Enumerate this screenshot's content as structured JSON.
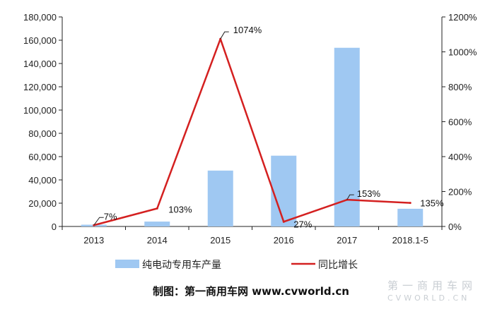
{
  "chart_data": {
    "type": "bar+line",
    "categories": [
      "2013",
      "2014",
      "2015",
      "2016",
      "2017",
      "2018.1-5"
    ],
    "series": [
      {
        "name": "纯电动专用车产量",
        "type": "bar",
        "axis": "left",
        "color": "#9fc8f2",
        "values": [
          1500,
          4200,
          48000,
          60800,
          153500,
          15200
        ]
      },
      {
        "name": "同比增长",
        "type": "line",
        "axis": "right",
        "color": "#d42020",
        "values": [
          7,
          103,
          1074,
          27,
          153,
          135
        ],
        "labels": [
          "7%",
          "103%",
          "1074%",
          "27%",
          "153%",
          "135%"
        ]
      }
    ],
    "y_left": {
      "min": 0,
      "max": 180000,
      "step": 20000,
      "ticks": [
        "0",
        "20,000",
        "40,000",
        "60,000",
        "80,000",
        "100,000",
        "120,000",
        "140,000",
        "160,000",
        "180,000"
      ]
    },
    "y_right": {
      "min": 0,
      "max": 1200,
      "step": 200,
      "ticks": [
        "0%",
        "200%",
        "400%",
        "600%",
        "800%",
        "1000%",
        "1200%"
      ]
    },
    "grid": false,
    "legend": "bottom"
  },
  "caption": "制图：第一商用车网 www.cvworld.cn",
  "watermark": {
    "line1": "第一商用车网",
    "line2": "CVWORLD.CN"
  }
}
